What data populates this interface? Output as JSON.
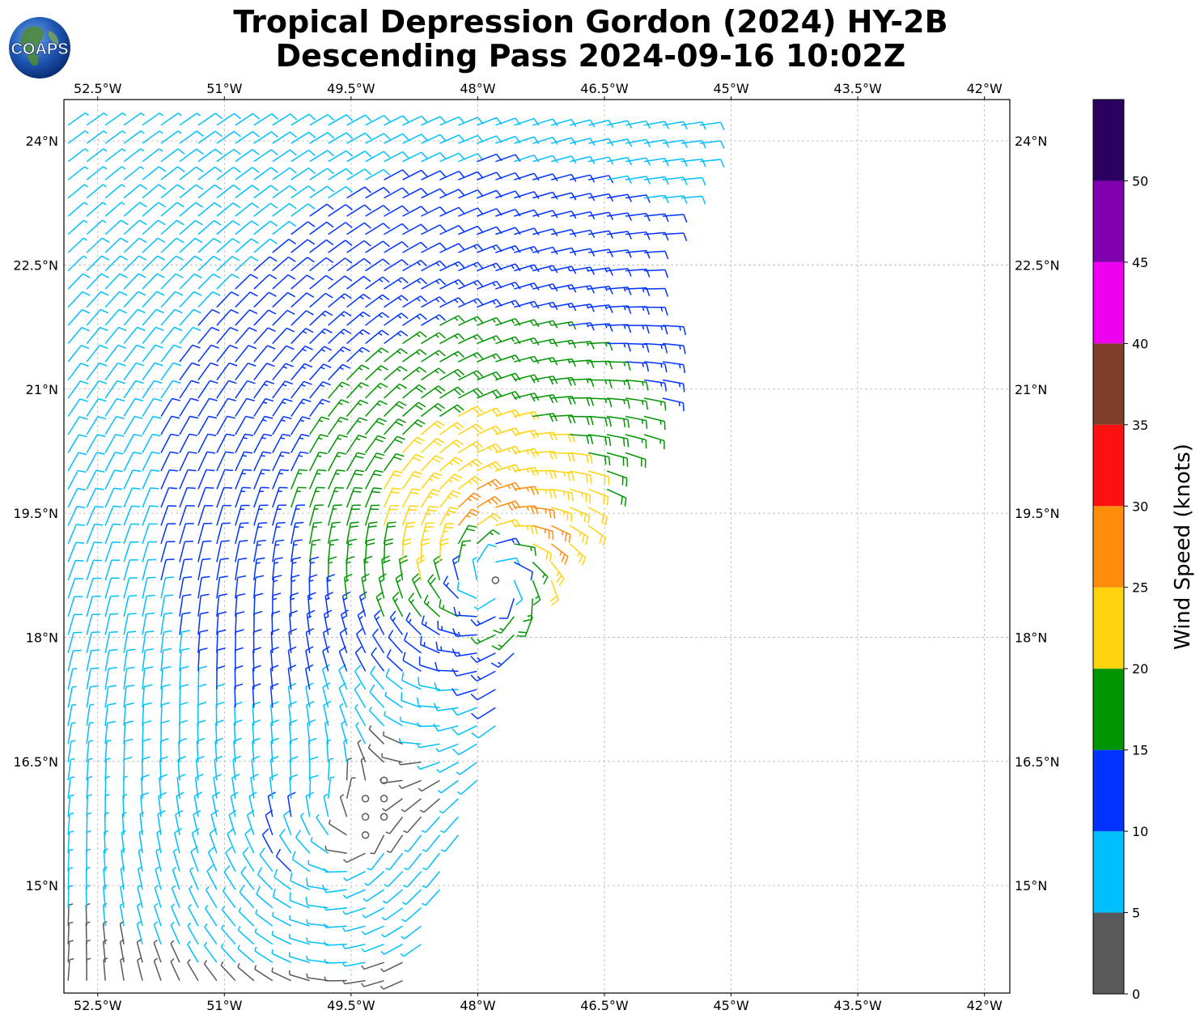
{
  "title_line1": "Tropical Depression Gordon (2024) HY-2B",
  "title_line2": "Descending Pass 2024-09-16 10:02Z",
  "logo_text": "COAPS",
  "chart_data": {
    "type": "wind_barbs_map",
    "x_ticks": [
      "52.5°W",
      "51°W",
      "49.5°W",
      "48°W",
      "46.5°W",
      "45°W",
      "43.5°W",
      "42°W"
    ],
    "x_tick_values": [
      -52.5,
      -51,
      -49.5,
      -48,
      -46.5,
      -45,
      -43.5,
      -42
    ],
    "y_ticks": [
      "24°N",
      "22.5°N",
      "21°N",
      "19.5°N",
      "18°N",
      "16.5°N",
      "15°N"
    ],
    "y_tick_values": [
      24,
      22.5,
      21,
      19.5,
      18,
      16.5,
      15
    ],
    "xlim": [
      -52.9,
      -41.7
    ],
    "ylim": [
      13.7,
      24.5
    ],
    "grid": true,
    "colorbar": {
      "label": "Wind Speed (knots)",
      "ticks": [
        "0",
        "5",
        "10",
        "15",
        "20",
        "25",
        "30",
        "35",
        "40",
        "45",
        "50"
      ],
      "bins": [
        {
          "min": 0,
          "max": 5,
          "color": "#595959"
        },
        {
          "min": 5,
          "max": 10,
          "color": "#00bfff"
        },
        {
          "min": 10,
          "max": 15,
          "color": "#0033ff"
        },
        {
          "min": 15,
          "max": 20,
          "color": "#009500"
        },
        {
          "min": 20,
          "max": 25,
          "color": "#ffd30f"
        },
        {
          "min": 25,
          "max": 30,
          "color": "#ff8c0a"
        },
        {
          "min": 30,
          "max": 35,
          "color": "#ff1010"
        },
        {
          "min": 35,
          "max": 40,
          "color": "#7f3e2a"
        },
        {
          "min": 40,
          "max": 45,
          "color": "#f000f0"
        },
        {
          "min": 45,
          "max": 50,
          "color": "#8000b0"
        },
        {
          "min": 50,
          "max": 55,
          "color": "#2c0060"
        }
      ]
    },
    "features": {
      "circulation_center": {
        "lon": -47.8,
        "lat": 18.85
      },
      "secondary_low": {
        "lon": -49.7,
        "lat": 15.5
      }
    }
  }
}
